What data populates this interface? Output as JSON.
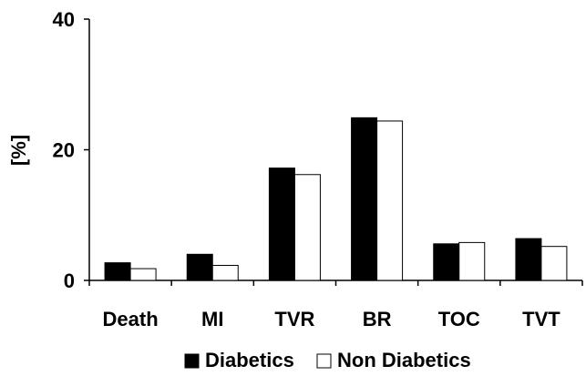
{
  "chart_data": {
    "type": "bar",
    "title": "",
    "xlabel": "",
    "ylabel": "[%]",
    "ylim": [
      0,
      40
    ],
    "yticks": [
      "0",
      "20",
      "40"
    ],
    "categories": [
      "Death",
      "MI",
      "TVR",
      "BR",
      "TOC",
      "TVT"
    ],
    "series": [
      {
        "name": "Diabetics",
        "values": [
          2.7,
          4.0,
          17.2,
          24.9,
          5.6,
          6.4
        ],
        "fill": "#000000"
      },
      {
        "name": "Non Diabetics",
        "values": [
          1.8,
          2.3,
          16.2,
          24.4,
          5.8,
          5.2
        ],
        "fill": "#ffffff"
      }
    ],
    "grid": false,
    "legend_position": "bottom-center"
  }
}
